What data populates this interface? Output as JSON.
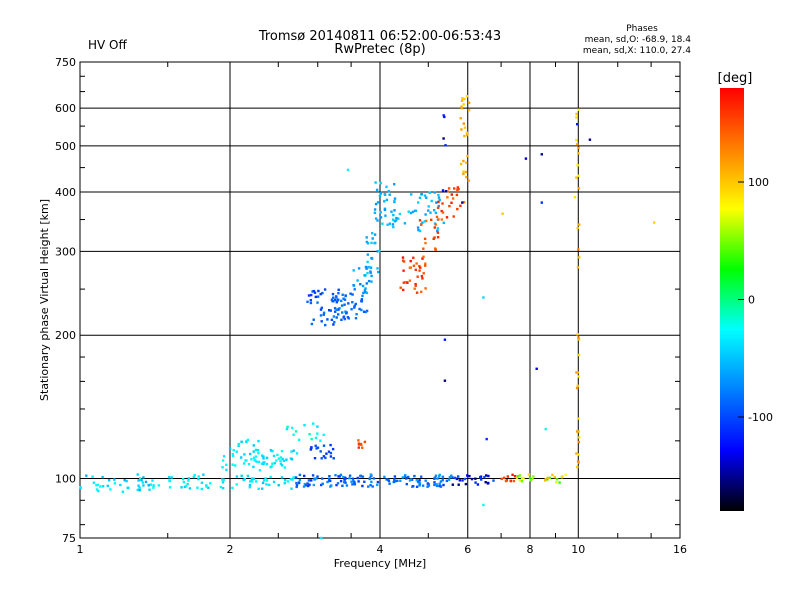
{
  "status_text": "HV Off",
  "status_color": "#d00000",
  "legend_block": {
    "heading": "Phases",
    "line1": "mean, sd,O: -68.9, 18.4",
    "line2": "mean, sd,X: 110.0, 27.4"
  },
  "chart_data": {
    "type": "scatter",
    "title": "Tromsø 20140811 06:52:00-06:53:43",
    "subtitle": "RwPretec (8p)",
    "xlabel": "Frequency [MHz]",
    "ylabel": "Stationary phase Virtual Height [km]",
    "x_scale": "log",
    "y_scale": "log",
    "xlim": [
      1,
      16
    ],
    "ylim": [
      75,
      750
    ],
    "x_ticks": [
      1,
      2,
      4,
      6,
      8,
      10,
      16
    ],
    "x_tick_labels": [
      "1",
      "2",
      "4",
      "6",
      "8",
      "10",
      "16"
    ],
    "y_ticks": [
      75,
      100,
      200,
      300,
      400,
      500,
      600,
      750
    ],
    "y_tick_labels": [
      "75",
      "100",
      "200",
      "300",
      "400",
      "500",
      "600",
      "750"
    ],
    "grid": true,
    "colorbar": {
      "label": "[deg]",
      "range": [
        -180,
        180
      ],
      "ticks": [
        100,
        0,
        -100
      ],
      "tick_labels": [
        "100",
        "0",
        "-100"
      ],
      "colors": [
        "#ff0000",
        "#ff8000",
        "#ffff00",
        "#00ff00",
        "#00ffff",
        "#0080ff",
        "#0000ff",
        "#000000"
      ]
    },
    "groups": [
      {
        "f": [
          1.0,
          1.4
        ],
        "h": [
          93,
          102
        ],
        "phase": [
          -60,
          -20
        ],
        "n": 40
      },
      {
        "f": [
          1.4,
          2.7
        ],
        "h": [
          95,
          102
        ],
        "phase": [
          -50,
          -20
        ],
        "n": 70
      },
      {
        "f": [
          2.7,
          5.6
        ],
        "h": [
          96,
          102
        ],
        "phase": [
          -110,
          -60
        ],
        "n": 140
      },
      {
        "f": [
          5.6,
          7.0
        ],
        "h": [
          97,
          102
        ],
        "phase": [
          -160,
          -90
        ],
        "n": 25
      },
      {
        "f": [
          7.0,
          7.5
        ],
        "h": [
          98,
          102
        ],
        "phase": [
          140,
          175
        ],
        "n": 10
      },
      {
        "f": [
          7.5,
          9.5
        ],
        "h": [
          98,
          102
        ],
        "phase": [
          30,
          110
        ],
        "n": 25
      },
      {
        "f": [
          1.9,
          2.6
        ],
        "h": [
          104,
          112
        ],
        "phase": [
          -40,
          -20
        ],
        "n": 35
      },
      {
        "f": [
          2.0,
          2.3
        ],
        "h": [
          110,
          121
        ],
        "phase": [
          -50,
          -20
        ],
        "n": 20
      },
      {
        "f": [
          2.3,
          2.75
        ],
        "h": [
          107,
          115
        ],
        "phase": [
          -50,
          -20
        ],
        "n": 20
      },
      {
        "f": [
          2.6,
          3.1
        ],
        "h": [
          120,
          134
        ],
        "phase": [
          -40,
          -10
        ],
        "n": 15
      },
      {
        "f": [
          2.9,
          3.25
        ],
        "h": [
          110,
          118
        ],
        "phase": [
          -110,
          -90
        ],
        "n": 20
      },
      {
        "f": [
          3.6,
          3.75
        ],
        "h": [
          116,
          121
        ],
        "phase": [
          140,
          165
        ],
        "n": 8
      },
      {
        "f": [
          2.85,
          3.4
        ],
        "h": [
          210,
          250
        ],
        "phase": [
          -110,
          -80
        ],
        "n": 45
      },
      {
        "f": [
          3.2,
          3.8
        ],
        "h": [
          215,
          245
        ],
        "phase": [
          -100,
          -70
        ],
        "n": 45
      },
      {
        "f": [
          3.5,
          3.85
        ],
        "h": [
          245,
          280
        ],
        "phase": [
          -80,
          -50
        ],
        "n": 25
      },
      {
        "f": [
          3.75,
          4.0
        ],
        "h": [
          270,
          330
        ],
        "phase": [
          -70,
          -40
        ],
        "n": 20
      },
      {
        "f": [
          3.9,
          4.3
        ],
        "h": [
          340,
          420
        ],
        "phase": [
          -70,
          -40
        ],
        "n": 35
      },
      {
        "f": [
          4.2,
          5.4
        ],
        "h": [
          330,
          400
        ],
        "phase": [
          -70,
          -40
        ],
        "n": 45
      },
      {
        "f": [
          4.4,
          5.0
        ],
        "h": [
          245,
          300
        ],
        "phase": [
          130,
          175
        ],
        "n": 35
      },
      {
        "f": [
          4.8,
          5.3
        ],
        "h": [
          300,
          350
        ],
        "phase": [
          130,
          170
        ],
        "n": 15
      },
      {
        "f": [
          5.2,
          5.9
        ],
        "h": [
          350,
          410
        ],
        "phase": [
          130,
          170
        ],
        "n": 25
      },
      {
        "f": [
          5.8,
          6.05
        ],
        "h": [
          420,
          640
        ],
        "phase": [
          90,
          120
        ],
        "n": 25
      },
      {
        "f": [
          9.9,
          10.05
        ],
        "h": [
          100,
          620
        ],
        "phase": [
          80,
          130
        ],
        "n": 35
      },
      {
        "f": [
          5.35,
          5.5
        ],
        "h": [
          130,
          610
        ],
        "phase": [
          -160,
          -110
        ],
        "n": 8
      }
    ],
    "points": [
      {
        "x": 3.45,
        "y": 445,
        "phase": -30
      },
      {
        "x": 6.45,
        "y": 240,
        "phase": -40
      },
      {
        "x": 6.55,
        "y": 121,
        "phase": -110
      },
      {
        "x": 6.45,
        "y": 88,
        "phase": -20
      },
      {
        "x": 8.25,
        "y": 170,
        "phase": -130
      },
      {
        "x": 7.85,
        "y": 470,
        "phase": -140
      },
      {
        "x": 8.45,
        "y": 480,
        "phase": -150
      },
      {
        "x": 8.45,
        "y": 380,
        "phase": -110
      },
      {
        "x": 10.55,
        "y": 515,
        "phase": -150
      },
      {
        "x": 9.95,
        "y": 555,
        "phase": -120
      },
      {
        "x": 14.2,
        "y": 345,
        "phase": 95
      },
      {
        "x": 8.6,
        "y": 127,
        "phase": -20
      },
      {
        "x": 7.05,
        "y": 360,
        "phase": 100
      },
      {
        "x": 3.05,
        "y": 75,
        "phase": -30
      },
      {
        "x": 9.85,
        "y": 390,
        "phase": 90
      },
      {
        "x": 5.85,
        "y": 380,
        "phase": -150
      }
    ]
  }
}
